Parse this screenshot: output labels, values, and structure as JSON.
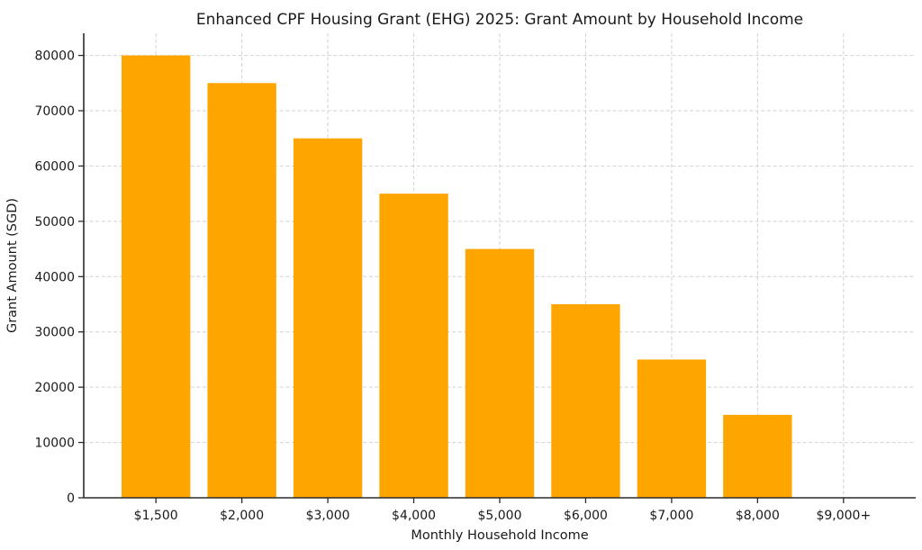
{
  "figure": {
    "background_color": "#ffffff"
  },
  "chart_data": {
    "type": "bar",
    "title": "Enhanced CPF Housing Grant (EHG) 2025: Grant Amount by Household Income",
    "xlabel": "Monthly Household Income",
    "ylabel": "Grant Amount (SGD)",
    "categories": [
      "$1,500",
      "$2,000",
      "$3,000",
      "$4,000",
      "$5,000",
      "$6,000",
      "$7,000",
      "$8,000",
      "$9,000+"
    ],
    "values": [
      80000,
      75000,
      65000,
      55000,
      45000,
      35000,
      25000,
      15000,
      0
    ],
    "yticks": [
      0,
      10000,
      20000,
      30000,
      40000,
      50000,
      60000,
      70000,
      80000
    ],
    "ytick_labels": [
      "0",
      "10000",
      "20000",
      "30000",
      "40000",
      "50000",
      "60000",
      "70000",
      "80000"
    ],
    "ylim": [
      0,
      84000
    ],
    "grid": true,
    "grid_axis": "both",
    "grid_line_style": "dashed",
    "legend": null,
    "colors": {
      "bar": "#FFA500",
      "grid": "#d2d2d2",
      "spine": "#2b2b2b",
      "tick": "#2b2b2b",
      "text": "#1a1a1a"
    }
  }
}
